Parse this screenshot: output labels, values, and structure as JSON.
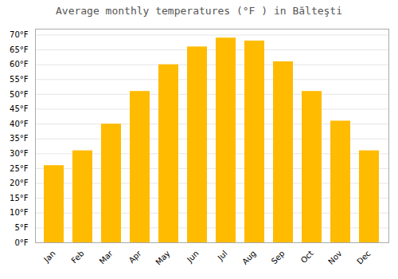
{
  "chart_data": {
    "type": "bar",
    "title": "Average monthly temperatures (°F ) in Bălteşti",
    "categories": [
      "Jan",
      "Feb",
      "Mar",
      "Apr",
      "May",
      "Jun",
      "Jul",
      "Aug",
      "Sep",
      "Oct",
      "Nov",
      "Dec"
    ],
    "values": [
      26,
      31,
      40,
      51,
      60,
      66,
      69,
      68,
      61,
      51,
      41,
      31
    ],
    "color": "#FFBB00",
    "ylim": [
      0,
      72
    ],
    "yticks": [
      {
        "value": 0,
        "label": "0°F"
      },
      {
        "value": 5,
        "label": "5°F"
      },
      {
        "value": 10,
        "label": "10°F"
      },
      {
        "value": 15,
        "label": "15°F"
      },
      {
        "value": 20,
        "label": "20°F"
      },
      {
        "value": 25,
        "label": "25°F"
      },
      {
        "value": 30,
        "label": "30°F"
      },
      {
        "value": 35,
        "label": "35°F"
      },
      {
        "value": 40,
        "label": "40°F"
      },
      {
        "value": 45,
        "label": "45°F"
      },
      {
        "value": 50,
        "label": "50°F"
      },
      {
        "value": 55,
        "label": "55°F"
      },
      {
        "value": 60,
        "label": "60°F"
      },
      {
        "value": 65,
        "label": "65°F"
      },
      {
        "value": 70,
        "label": "70°F"
      }
    ],
    "grid": true
  }
}
